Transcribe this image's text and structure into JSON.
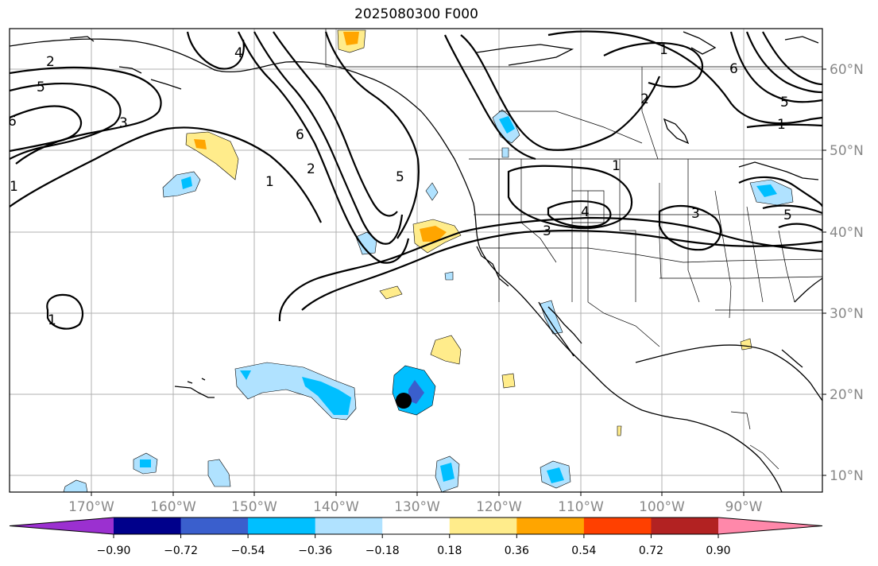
{
  "title": "2025080300 F000",
  "lon_labels": [
    "170°W",
    "160°W",
    "150°W",
    "140°W",
    "130°W",
    "120°W",
    "110°W",
    "100°W",
    "90°W"
  ],
  "lat_labels": [
    "60°N",
    "50°N",
    "40°N",
    "30°N",
    "20°N",
    "10°N"
  ],
  "colorbar": {
    "colors": [
      "#9b30d0",
      "#00008b",
      "#3a5fcd",
      "#00bfff",
      "#b0e2ff",
      "#ffffff",
      "#ffec8b",
      "#ffa500",
      "#ff4000",
      "#b22222",
      "#ff88aa"
    ],
    "tick_labels": [
      "−0.90",
      "−0.72",
      "−0.54",
      "−0.36",
      "−0.18",
      "0.18",
      "0.36",
      "0.54",
      "0.72",
      "0.90"
    ]
  },
  "contour_labels": [
    "2",
    "5",
    "6",
    "1",
    "3",
    "4",
    "6",
    "2",
    "5",
    "1",
    "1",
    "2",
    "1",
    "4",
    "3",
    "1",
    "5",
    "3",
    "6",
    "5",
    "1"
  ],
  "marker": "storm-center-dot"
}
